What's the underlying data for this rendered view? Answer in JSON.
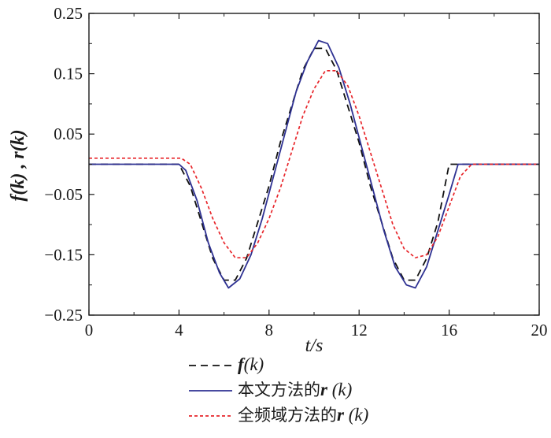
{
  "chart_data": {
    "type": "line",
    "xlabel": "t/s",
    "ylabel": "f(k) , r(k)",
    "xlim": [
      0,
      20
    ],
    "ylim": [
      -0.25,
      0.25
    ],
    "x_ticks": [
      "0",
      "4",
      "8",
      "12",
      "16",
      "20"
    ],
    "y_ticks": [
      "0.25",
      "0.15",
      "0.05",
      "−0.05",
      "−0.15",
      "−0.25"
    ],
    "x_tick_values": [
      0,
      4,
      8,
      12,
      16,
      20
    ],
    "y_tick_values": [
      0.25,
      0.15,
      0.05,
      -0.05,
      -0.15,
      -0.25
    ],
    "series": [
      {
        "name": "f(k)",
        "legend_prefix": "",
        "legend_var": "f",
        "legend_arg": "(k)",
        "style": "dashed",
        "color": "#111111",
        "x": [
          0,
          4,
          4.5,
          5,
          5.5,
          6,
          6.5,
          7,
          7.5,
          8,
          8.5,
          9,
          9.5,
          10,
          10.5,
          11,
          11.5,
          12,
          12.5,
          13,
          13.5,
          14,
          14.5,
          15,
          15.5,
          16,
          20
        ],
        "values": [
          0,
          0,
          -0.036,
          -0.096,
          -0.156,
          -0.192,
          -0.192,
          -0.156,
          -0.096,
          -0.036,
          0.036,
          0.096,
          0.156,
          0.192,
          0.192,
          0.156,
          0.096,
          0.036,
          -0.036,
          -0.096,
          -0.156,
          -0.192,
          -0.192,
          -0.156,
          -0.096,
          0,
          0
        ]
      },
      {
        "name": "本文方法的r(k)",
        "legend_prefix": "本文方法的",
        "legend_var": "r",
        "legend_arg": " (k)",
        "style": "solid",
        "color": "#2e3192",
        "x": [
          0,
          4,
          4.3,
          4.8,
          5.3,
          5.8,
          6.2,
          6.7,
          7.2,
          7.7,
          8.2,
          8.7,
          9.2,
          9.7,
          10.2,
          10.6,
          11.1,
          11.6,
          12.1,
          12.6,
          13.1,
          13.6,
          14.1,
          14.5,
          15,
          15.5,
          16,
          16.4,
          20
        ],
        "values": [
          0,
          0,
          -0.01,
          -0.06,
          -0.13,
          -0.18,
          -0.205,
          -0.19,
          -0.15,
          -0.09,
          -0.02,
          0.05,
          0.12,
          0.17,
          0.205,
          0.2,
          0.16,
          0.1,
          0.03,
          -0.04,
          -0.11,
          -0.17,
          -0.2,
          -0.205,
          -0.17,
          -0.11,
          -0.05,
          0,
          0
        ]
      },
      {
        "name": "全频域方法的r(k)",
        "legend_prefix": "全频域方法的",
        "legend_var": "r",
        "legend_arg": " (k)",
        "style": "dotted",
        "color": "#e8262b",
        "x": [
          0,
          4.1,
          4.5,
          5,
          5.5,
          6,
          6.5,
          7,
          7.5,
          8,
          8.5,
          9,
          9.5,
          10,
          10.5,
          11,
          11.5,
          12,
          12.5,
          13,
          13.5,
          14,
          14.5,
          15,
          15.5,
          16,
          16.5,
          17,
          20
        ],
        "values": [
          0.01,
          0.01,
          0,
          -0.04,
          -0.09,
          -0.13,
          -0.155,
          -0.155,
          -0.13,
          -0.09,
          -0.04,
          0.02,
          0.08,
          0.125,
          0.155,
          0.155,
          0.13,
          0.08,
          0.02,
          -0.04,
          -0.1,
          -0.14,
          -0.155,
          -0.15,
          -0.12,
          -0.07,
          -0.02,
          0,
          0
        ]
      }
    ]
  }
}
